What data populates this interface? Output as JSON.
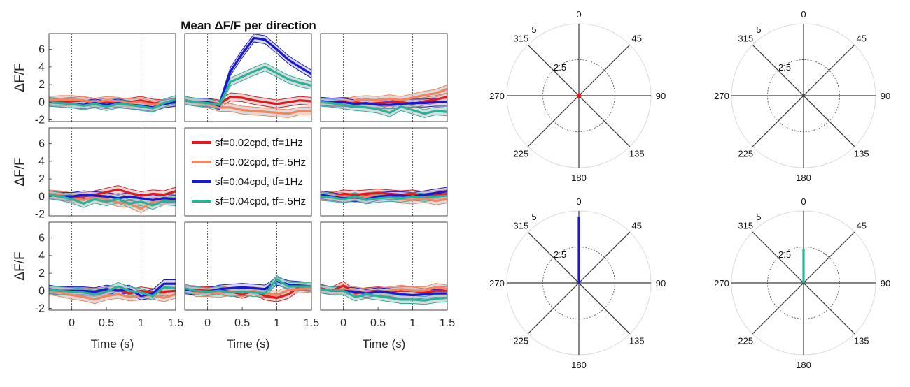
{
  "figure": {
    "title": "Mean ΔF/F per direction"
  },
  "chart_data": [
    {
      "type": "line",
      "title": "Mean ΔF/F per direction",
      "layout": "3x3 grid of panels; center panel holds the legend",
      "xlabel": "Time (s)",
      "ylabel": "ΔF/F",
      "xlim": [
        -0.33,
        1.5
      ],
      "ylim": [
        -2.2,
        7.8
      ],
      "xticks": [
        "0",
        "0.5",
        "1",
        "1.5"
      ],
      "yticks": [
        "-2",
        "0",
        "2",
        "4",
        "6"
      ],
      "vlines": [
        0,
        1
      ],
      "x": [
        -0.33,
        -0.17,
        0,
        0.17,
        0.33,
        0.5,
        0.67,
        0.83,
        1.0,
        1.17,
        1.33,
        1.5
      ],
      "legend": {
        "location": "center panel",
        "entries": [
          {
            "label": "sf=0.02cpd, tf=1Hz",
            "color": "#e31a1c"
          },
          {
            "label": "sf=0.02cpd, tf=.5Hz",
            "color": "#f4845f"
          },
          {
            "label": "sf=0.04cpd, tf=1Hz",
            "color": "#1818d6"
          },
          {
            "label": "sf=0.04cpd, tf=.5Hz",
            "color": "#26b39a"
          }
        ]
      },
      "panels": [
        {
          "series": [
            {
              "color": "#e31a1c",
              "values": [
                0.1,
                0.0,
                0.1,
                0.2,
                -0.2,
                0.0,
                -0.1,
                0.0,
                0.2,
                -0.1,
                -0.2,
                0.0
              ]
            },
            {
              "color": "#f4845f",
              "values": [
                0.2,
                0.3,
                0.3,
                0.2,
                0.0,
                0.2,
                0.1,
                -0.1,
                0.0,
                -0.3,
                -0.2,
                0.1
              ]
            },
            {
              "color": "#1818d6",
              "values": [
                0.0,
                -0.1,
                -0.2,
                -0.3,
                -0.1,
                -0.3,
                -0.1,
                -0.3,
                -0.4,
                -0.6,
                -0.2,
                0.0
              ]
            },
            {
              "color": "#26b39a",
              "values": [
                0.0,
                -0.1,
                -0.2,
                -0.4,
                -0.2,
                -0.5,
                -0.2,
                -0.3,
                -0.5,
                -0.7,
                -0.1,
                0.3
              ]
            }
          ]
        },
        {
          "series": [
            {
              "color": "#e31a1c",
              "values": [
                0.2,
                0.0,
                0.0,
                -0.2,
                0.6,
                0.5,
                0.2,
                0.0,
                -0.2,
                0.0,
                0.2,
                0.1
              ]
            },
            {
              "color": "#f4845f",
              "values": [
                0.2,
                0.0,
                -0.2,
                -0.6,
                -0.6,
                -0.9,
                -1.0,
                -1.1,
                -1.2,
                -1.3,
                -1.0,
                -1.0
              ]
            },
            {
              "color": "#1818d6",
              "values": [
                0.2,
                0.0,
                0.0,
                -0.4,
                3.5,
                5.5,
                7.3,
                7.1,
                6.0,
                4.8,
                4.0,
                3.2
              ]
            },
            {
              "color": "#26b39a",
              "values": [
                0.2,
                0.0,
                -0.1,
                -0.3,
                2.3,
                2.9,
                3.5,
                4.0,
                3.3,
                2.6,
                2.2,
                1.9
              ]
            }
          ]
        },
        {
          "series": [
            {
              "color": "#e31a1c",
              "values": [
                0.1,
                0.0,
                0.1,
                0.0,
                -0.2,
                -0.1,
                0.0,
                0.0,
                -0.2,
                0.1,
                0.3,
                0.6
              ]
            },
            {
              "color": "#f4845f",
              "values": [
                0.0,
                -0.1,
                -0.1,
                0.2,
                0.3,
                0.2,
                0.4,
                0.2,
                0.5,
                0.8,
                1.0,
                1.5
              ]
            },
            {
              "color": "#1818d6",
              "values": [
                0.1,
                0.0,
                0.0,
                -0.2,
                -0.1,
                -0.3,
                -0.3,
                -0.2,
                -0.1,
                -0.1,
                0.0,
                0.0
              ]
            },
            {
              "color": "#26b39a",
              "values": [
                0.0,
                -0.1,
                -0.3,
                -0.5,
                -0.6,
                -0.8,
                -1.2,
                -0.5,
                -0.9,
                -1.3,
                -1.0,
                -1.1
              ]
            }
          ]
        },
        {
          "series": [
            {
              "color": "#e31a1c",
              "values": [
                0.2,
                0.1,
                0.0,
                0.0,
                0.2,
                0.5,
                0.8,
                0.4,
                0.1,
                0.3,
                0.2,
                0.6
              ]
            },
            {
              "color": "#f4845f",
              "values": [
                0.3,
                0.2,
                -0.2,
                -0.4,
                0.0,
                -0.3,
                -0.7,
                -0.8,
                -1.4,
                -0.6,
                -0.4,
                -0.3
              ]
            },
            {
              "color": "#1818d6",
              "values": [
                0.2,
                0.0,
                0.0,
                0.2,
                0.1,
                0.0,
                -0.2,
                0.0,
                -0.2,
                -0.4,
                -0.2,
                -0.3
              ]
            },
            {
              "color": "#26b39a",
              "values": [
                0.2,
                0.0,
                -0.3,
                -0.8,
                -0.3,
                -0.6,
                -0.3,
                -0.8,
                -0.6,
                -1.0,
                -0.5,
                -0.6
              ]
            }
          ]
        },
        {
          "series": []
        },
        {
          "series": [
            {
              "color": "#e31a1c",
              "values": [
                0.1,
                0.0,
                0.3,
                0.2,
                0.3,
                0.4,
                0.3,
                0.2,
                0.3,
                0.1,
                0.2,
                0.3
              ]
            },
            {
              "color": "#f4845f",
              "values": [
                0.0,
                0.1,
                0.0,
                -0.2,
                0.0,
                0.1,
                0.0,
                -0.3,
                -0.4,
                -0.2,
                -0.5,
                -0.3
              ]
            },
            {
              "color": "#1818d6",
              "values": [
                0.2,
                0.0,
                -0.2,
                -0.1,
                -0.3,
                0.0,
                0.1,
                0.1,
                0.0,
                0.2,
                0.4,
                0.6
              ]
            },
            {
              "color": "#26b39a",
              "values": [
                0.0,
                -0.1,
                -0.3,
                0.0,
                -0.4,
                -0.2,
                -0.1,
                -0.2,
                0.0,
                -0.1,
                0.0,
                0.1
              ]
            }
          ]
        },
        {
          "series": [
            {
              "color": "#e31a1c",
              "values": [
                0.1,
                0.0,
                0.0,
                -0.1,
                -0.2,
                0.0,
                0.1,
                -0.3,
                0.0,
                -0.2,
                -0.1,
                0.0
              ]
            },
            {
              "color": "#f4845f",
              "values": [
                0.0,
                -0.2,
                -0.5,
                -0.7,
                -1.0,
                -0.6,
                -0.4,
                -0.7,
                -0.6,
                -0.5,
                -0.8,
                -0.4
              ]
            },
            {
              "color": "#1818d6",
              "values": [
                0.2,
                0.0,
                0.0,
                0.0,
                -0.1,
                0.2,
                0.0,
                0.2,
                -0.6,
                -0.3,
                0.8,
                0.8
              ]
            },
            {
              "color": "#26b39a",
              "values": [
                0.1,
                0.0,
                -0.1,
                -0.2,
                -0.4,
                -0.1,
                0.5,
                0.0,
                -0.2,
                -0.6,
                0.4,
                0.3
              ]
            }
          ]
        },
        {
          "series": [
            {
              "color": "#e31a1c",
              "values": [
                0.2,
                0.1,
                0.0,
                0.1,
                -0.1,
                -0.4,
                0.0,
                -0.6,
                -0.8,
                -0.4,
                0.5,
                0.3
              ]
            },
            {
              "color": "#f4845f",
              "values": [
                0.3,
                -0.2,
                -0.2,
                -0.3,
                -0.1,
                -0.2,
                0.0,
                -0.3,
                -0.5,
                0.1,
                0.2,
                0.3
              ]
            },
            {
              "color": "#1818d6",
              "values": [
                0.1,
                0.0,
                -0.1,
                0.2,
                0.3,
                0.4,
                0.3,
                0.2,
                1.1,
                0.7,
                0.6,
                0.5
              ]
            },
            {
              "color": "#26b39a",
              "values": [
                0.3,
                0.0,
                -0.1,
                0.0,
                -0.2,
                -0.1,
                -0.2,
                -0.3,
                1.3,
                0.5,
                0.5,
                0.5
              ]
            }
          ]
        },
        {
          "series": [
            {
              "color": "#e31a1c",
              "values": [
                0.3,
                0.0,
                0.6,
                -0.3,
                -0.1,
                0.0,
                -0.1,
                0.0,
                0.0,
                -0.2,
                0.0,
                0.0
              ]
            },
            {
              "color": "#f4845f",
              "values": [
                0.2,
                0.0,
                0.2,
                0.0,
                -0.2,
                -0.1,
                0.0,
                0.2,
                0.0,
                0.0,
                0.4,
                0.2
              ]
            },
            {
              "color": "#1818d6",
              "values": [
                0.2,
                0.0,
                0.0,
                -0.1,
                -0.3,
                -0.1,
                -0.2,
                -0.4,
                -0.5,
                -0.4,
                -0.3,
                -0.3
              ]
            },
            {
              "color": "#26b39a",
              "values": [
                0.2,
                0.0,
                0.0,
                -0.7,
                -0.4,
                -0.6,
                -0.8,
                -1.0,
                -1.0,
                -1.1,
                -0.9,
                -0.8
              ]
            }
          ]
        }
      ]
    },
    {
      "type": "polar",
      "rmax": 5,
      "r_ticks": [
        "2.5",
        "5"
      ],
      "angle_labels": [
        "0",
        "45",
        "90",
        "135",
        "180",
        "225",
        "270",
        "315"
      ],
      "series": [
        {
          "color": "#e31a1c",
          "angle": 0,
          "value": 0.1
        }
      ]
    },
    {
      "type": "polar",
      "rmax": 5,
      "r_ticks": [
        "2.5",
        "5"
      ],
      "angle_labels": [
        "0",
        "45",
        "90",
        "135",
        "180",
        "225",
        "270",
        "315"
      ],
      "series": []
    },
    {
      "type": "polar",
      "rmax": 5,
      "r_ticks": [
        "2.5",
        "5"
      ],
      "angle_labels": [
        "0",
        "45",
        "90",
        "135",
        "180",
        "225",
        "270",
        "315"
      ],
      "series": [
        {
          "color": "#1818d6",
          "angle": 0,
          "value": 4.6
        }
      ]
    },
    {
      "type": "polar",
      "rmax": 5,
      "r_ticks": [
        "2.5",
        "5"
      ],
      "angle_labels": [
        "0",
        "45",
        "90",
        "135",
        "180",
        "225",
        "270",
        "315"
      ],
      "series": [
        {
          "color": "#26b39a",
          "angle": 0,
          "value": 2.4
        }
      ]
    }
  ]
}
